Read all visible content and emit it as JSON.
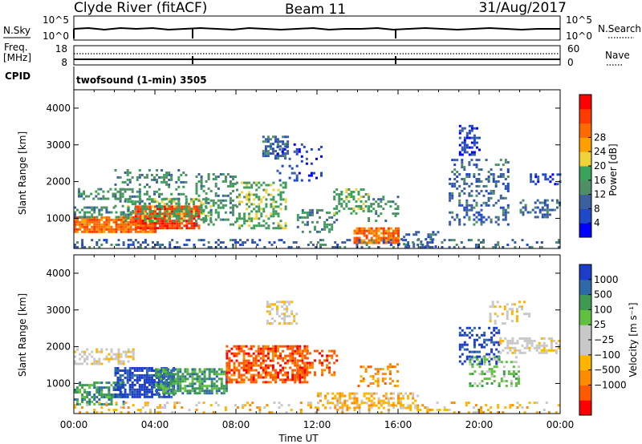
{
  "header": {
    "station": "Clyde River (fitACF)",
    "beam": "Beam 11",
    "date": "31/Aug/2017"
  },
  "noise_panel": {
    "left_label": "N.Sky",
    "left_ticks": [
      "10^5",
      "10^0"
    ],
    "right_ticks": [
      "10^5",
      "10^0"
    ],
    "right_label": "N.Search"
  },
  "freq_panel": {
    "left_label_1": "Freq.",
    "left_label_2": "[MHz]",
    "left_ticks": [
      "18",
      "8"
    ],
    "right_ticks": [
      "60",
      "0"
    ],
    "right_label": "Nave"
  },
  "cpid": {
    "label": "CPID",
    "program": "twofsound (1-min) 3505"
  },
  "colors": {
    "power": [
      "#0000ff",
      "#1f49c8",
      "#3c5fa0",
      "#4f8f65",
      "#3aa35a",
      "#f2d23a",
      "#ffa000",
      "#ff6a00",
      "#ff3a00",
      "#ff0000"
    ],
    "velocity": [
      "#ff0000",
      "#ff5a00",
      "#ff8c00",
      "#ffb400",
      "#c8c8c8",
      "#c8c8c8",
      "#60c040",
      "#3d9a50",
      "#2f6aa8",
      "#1c3dc8"
    ]
  },
  "chart_data": [
    {
      "type": "heatmap",
      "name": "power",
      "ylabel": "Slant Range [km]",
      "yticks": [
        "1000",
        "2000",
        "3000",
        "4000"
      ],
      "colorbar_label": "Power [dB]",
      "colorbar_ticks": [
        "4",
        "8",
        "12",
        "16",
        "20",
        "24",
        "28"
      ],
      "blobs": [
        {
          "t0": 0.0,
          "t1": 4.0,
          "r0": 600,
          "r1": 1000,
          "cat": 7,
          "d": 0.85
        },
        {
          "t0": 3.0,
          "t1": 6.2,
          "r0": 700,
          "r1": 1300,
          "cat": 8,
          "d": 0.85
        },
        {
          "t0": 2.5,
          "t1": 6.8,
          "r0": 900,
          "r1": 1500,
          "cat": 4,
          "d": 0.45
        },
        {
          "t0": 0.0,
          "t1": 3.0,
          "r0": 1000,
          "r1": 1300,
          "cat": 3,
          "d": 0.35
        },
        {
          "t0": 0.2,
          "t1": 2.5,
          "r0": 1500,
          "r1": 1800,
          "cat": 3,
          "d": 0.35
        },
        {
          "t0": 2.0,
          "t1": 5.5,
          "r0": 1300,
          "r1": 2300,
          "cat": 3,
          "d": 0.3
        },
        {
          "t0": 6.0,
          "t1": 8.0,
          "r0": 800,
          "r1": 2200,
          "cat": 3,
          "d": 0.35
        },
        {
          "t0": 8.0,
          "t1": 10.5,
          "r0": 700,
          "r1": 2000,
          "cat": 4,
          "d": 0.4
        },
        {
          "t0": 9.3,
          "t1": 10.5,
          "r0": 2600,
          "r1": 3200,
          "cat": 2,
          "d": 0.55
        },
        {
          "t0": 10.0,
          "t1": 12.2,
          "r0": 2000,
          "r1": 3000,
          "cat": 1,
          "d": 0.15
        },
        {
          "t0": 11.0,
          "t1": 13.0,
          "r0": 600,
          "r1": 1200,
          "cat": 3,
          "d": 0.3
        },
        {
          "t0": 12.8,
          "t1": 14.5,
          "r0": 1100,
          "r1": 1800,
          "cat": 4,
          "d": 0.35
        },
        {
          "t0": 13.8,
          "t1": 16.0,
          "r0": 300,
          "r1": 700,
          "cat": 7,
          "d": 0.8
        },
        {
          "t0": 14.5,
          "t1": 16.0,
          "r0": 900,
          "r1": 1600,
          "cat": 3,
          "d": 0.3
        },
        {
          "t0": 16.0,
          "t1": 18.0,
          "r0": 200,
          "r1": 600,
          "cat": 2,
          "d": 0.25
        },
        {
          "t0": 18.5,
          "t1": 21.5,
          "r0": 800,
          "r1": 2600,
          "cat": 2,
          "d": 0.3
        },
        {
          "t0": 19.0,
          "t1": 20.0,
          "r0": 2700,
          "r1": 3500,
          "cat": 1,
          "d": 0.4
        },
        {
          "t0": 22.0,
          "t1": 24.0,
          "r0": 1000,
          "r1": 1500,
          "cat": 2,
          "d": 0.35
        },
        {
          "t0": 22.5,
          "t1": 24.0,
          "r0": 1900,
          "r1": 2200,
          "cat": 1,
          "d": 0.45
        },
        {
          "t0": 0.0,
          "t1": 24.0,
          "r0": 180,
          "r1": 420,
          "cat": 2,
          "d": 0.25
        }
      ]
    },
    {
      "type": "heatmap",
      "name": "velocity",
      "ylabel": "Slant Range [km]",
      "yticks": [
        "1000",
        "2000",
        "3000",
        "4000"
      ],
      "colorbar_label": "Velocity [m s⁻¹]",
      "colorbar_ticks": [
        "1000",
        "500",
        "100",
        "25",
        "−25",
        "−100",
        "−500",
        "−1000"
      ],
      "xlabel": "Time UT",
      "xticks": [
        "00:00",
        "04:00",
        "08:00",
        "12:00",
        "16:00",
        "20:00",
        "00:00"
      ],
      "blobs": [
        {
          "t0": 0.0,
          "t1": 2.5,
          "r0": 400,
          "r1": 1000,
          "cat": 7,
          "d": 0.6
        },
        {
          "t0": 2.0,
          "t1": 5.0,
          "r0": 600,
          "r1": 1400,
          "cat": 9,
          "d": 0.75
        },
        {
          "t0": 4.0,
          "t1": 7.5,
          "r0": 700,
          "r1": 1400,
          "cat": 7,
          "d": 0.7
        },
        {
          "t0": 0.0,
          "t1": 3.0,
          "r0": 1500,
          "r1": 1900,
          "cat": 4,
          "d": 0.5
        },
        {
          "t0": 7.5,
          "t1": 11.5,
          "r0": 1000,
          "r1": 2000,
          "cat": 1,
          "d": 0.65
        },
        {
          "t0": 9.5,
          "t1": 11.0,
          "r0": 2600,
          "r1": 3200,
          "cat": 4,
          "d": 0.45
        },
        {
          "t0": 11.0,
          "t1": 13.0,
          "r0": 1200,
          "r1": 1900,
          "cat": 1,
          "d": 0.35
        },
        {
          "t0": 12.0,
          "t1": 17.0,
          "r0": 300,
          "r1": 700,
          "cat": 3,
          "d": 0.45
        },
        {
          "t0": 14.0,
          "t1": 16.0,
          "r0": 900,
          "r1": 1500,
          "cat": 2,
          "d": 0.3
        },
        {
          "t0": 19.0,
          "t1": 21.0,
          "r0": 1500,
          "r1": 2500,
          "cat": 9,
          "d": 0.35
        },
        {
          "t0": 19.5,
          "t1": 22.0,
          "r0": 900,
          "r1": 1700,
          "cat": 6,
          "d": 0.35
        },
        {
          "t0": 21.0,
          "t1": 24.0,
          "r0": 1800,
          "r1": 2200,
          "cat": 4,
          "d": 0.5
        },
        {
          "t0": 20.5,
          "t1": 22.5,
          "r0": 2600,
          "r1": 3200,
          "cat": 4,
          "d": 0.3
        },
        {
          "t0": 0.0,
          "t1": 24.0,
          "r0": 180,
          "r1": 450,
          "cat": 3,
          "d": 0.2
        }
      ]
    }
  ]
}
